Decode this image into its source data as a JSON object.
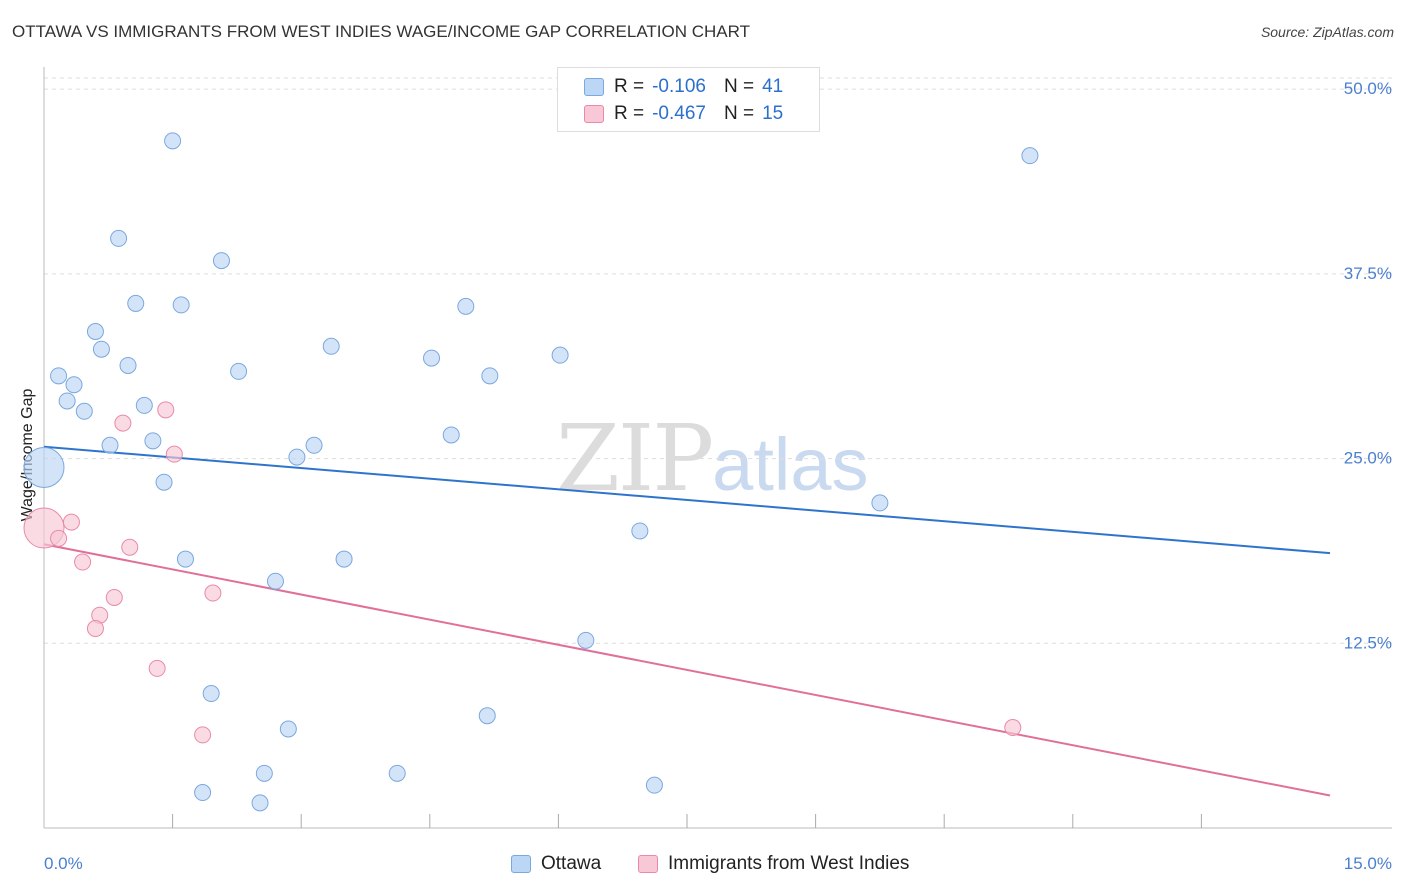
{
  "header": {
    "title": "OTTAWA VS IMMIGRANTS FROM WEST INDIES WAGE/INCOME GAP CORRELATION CHART",
    "source": "Source: ZipAtlas.com"
  },
  "watermark": {
    "zip": "ZIP",
    "atlas": "atlas"
  },
  "legend": {
    "rows": [
      {
        "r_label": "R =",
        "r_value": "-0.106",
        "n_label": "N =",
        "n_value": "41"
      },
      {
        "r_label": "R =",
        "r_value": "-0.467",
        "n_label": "N =",
        "n_value": "15"
      }
    ]
  },
  "colors": {
    "blue_fill": "#bcd6f5",
    "blue_stroke": "#7aa8df",
    "blue_line": "#2f74cc",
    "pink_fill": "#f8c8d6",
    "pink_stroke": "#e98aa7",
    "pink_line": "#e07099",
    "tick_label": "#4a7fcf",
    "grid": "#dddddd"
  },
  "chart_data": {
    "type": "scatter",
    "title": "OTTAWA VS IMMIGRANTS FROM WEST INDIES WAGE/INCOME GAP CORRELATION CHART",
    "xlabel": "",
    "ylabel": "Wage/Income Gap",
    "xlim": [
      0,
      15
    ],
    "ylim": [
      0,
      51.5
    ],
    "x_tick_labels": [
      {
        "value": 0,
        "label": "0.0%"
      },
      {
        "value": 15,
        "label": "15.0%"
      }
    ],
    "y_ticks": [
      {
        "value": 12.5,
        "label": "12.5%"
      },
      {
        "value": 25.0,
        "label": "25.0%"
      },
      {
        "value": 37.5,
        "label": "37.5%"
      },
      {
        "value": 50.0,
        "label": "50.0%"
      }
    ],
    "x_minor_ticks": [
      1.5,
      3.0,
      4.5,
      6.0,
      7.5,
      9.0,
      10.5,
      12.0,
      13.5
    ],
    "grid": true,
    "series": [
      {
        "name": "Ottawa",
        "color": "#bcd6f5",
        "trend": {
          "x": [
            0,
            15
          ],
          "y": [
            25.8,
            18.6
          ]
        },
        "points": [
          {
            "x": 0.0,
            "y": 24.4,
            "size": "large"
          },
          {
            "x": 1.5,
            "y": 46.5
          },
          {
            "x": 11.5,
            "y": 45.5
          },
          {
            "x": 0.87,
            "y": 39.9
          },
          {
            "x": 2.07,
            "y": 38.4
          },
          {
            "x": 1.07,
            "y": 35.5
          },
          {
            "x": 1.6,
            "y": 35.4
          },
          {
            "x": 4.92,
            "y": 35.3
          },
          {
            "x": 0.6,
            "y": 33.6
          },
          {
            "x": 3.35,
            "y": 32.6
          },
          {
            "x": 0.67,
            "y": 32.4
          },
          {
            "x": 4.52,
            "y": 31.8
          },
          {
            "x": 6.02,
            "y": 32.0
          },
          {
            "x": 0.98,
            "y": 31.3
          },
          {
            "x": 2.27,
            "y": 30.9
          },
          {
            "x": 0.17,
            "y": 30.6
          },
          {
            "x": 0.35,
            "y": 30.0
          },
          {
            "x": 5.2,
            "y": 30.6
          },
          {
            "x": 0.27,
            "y": 28.9
          },
          {
            "x": 1.17,
            "y": 28.6
          },
          {
            "x": 0.47,
            "y": 28.2
          },
          {
            "x": 4.75,
            "y": 26.6
          },
          {
            "x": 1.27,
            "y": 26.2
          },
          {
            "x": 0.77,
            "y": 25.9
          },
          {
            "x": 3.15,
            "y": 25.9
          },
          {
            "x": 2.95,
            "y": 25.1
          },
          {
            "x": 1.4,
            "y": 23.4
          },
          {
            "x": 9.75,
            "y": 22.0
          },
          {
            "x": 6.95,
            "y": 20.1
          },
          {
            "x": 1.65,
            "y": 18.2
          },
          {
            "x": 3.5,
            "y": 18.2
          },
          {
            "x": 2.7,
            "y": 16.7
          },
          {
            "x": 6.32,
            "y": 12.7
          },
          {
            "x": 1.95,
            "y": 9.1
          },
          {
            "x": 5.17,
            "y": 7.6
          },
          {
            "x": 2.85,
            "y": 6.7
          },
          {
            "x": 2.57,
            "y": 3.7
          },
          {
            "x": 4.12,
            "y": 3.7
          },
          {
            "x": 7.12,
            "y": 2.9
          },
          {
            "x": 1.85,
            "y": 2.4
          },
          {
            "x": 2.52,
            "y": 1.7
          }
        ]
      },
      {
        "name": "Immigrants from West Indies",
        "color": "#f8c8d6",
        "trend": {
          "x": [
            0,
            15
          ],
          "y": [
            19.2,
            2.2
          ]
        },
        "points": [
          {
            "x": 0.0,
            "y": 20.3,
            "size": "large"
          },
          {
            "x": 1.42,
            "y": 28.3
          },
          {
            "x": 0.92,
            "y": 27.4
          },
          {
            "x": 1.52,
            "y": 25.3
          },
          {
            "x": 0.32,
            "y": 20.7
          },
          {
            "x": 0.17,
            "y": 19.6
          },
          {
            "x": 1.0,
            "y": 19.0
          },
          {
            "x": 0.45,
            "y": 18.0
          },
          {
            "x": 1.97,
            "y": 15.9
          },
          {
            "x": 0.82,
            "y": 15.6
          },
          {
            "x": 0.65,
            "y": 14.4
          },
          {
            "x": 0.6,
            "y": 13.5
          },
          {
            "x": 1.32,
            "y": 10.8
          },
          {
            "x": 1.85,
            "y": 6.3
          },
          {
            "x": 11.3,
            "y": 6.8
          }
        ]
      }
    ]
  }
}
